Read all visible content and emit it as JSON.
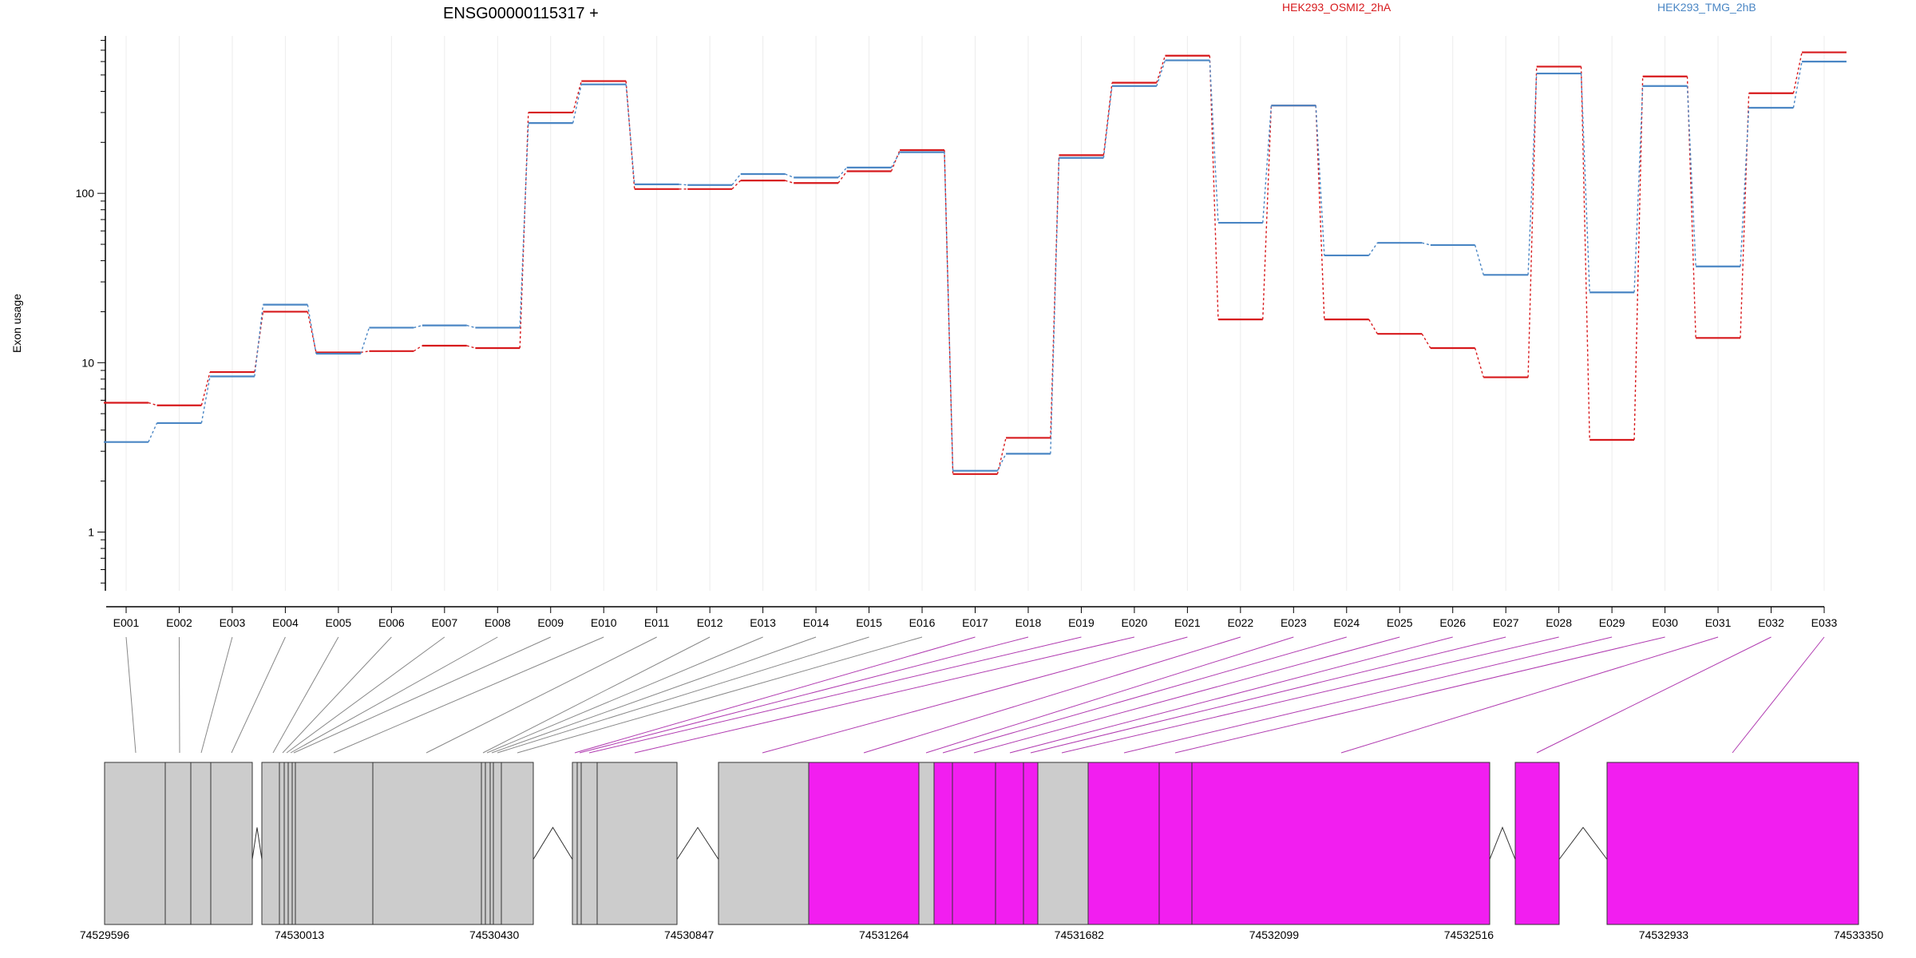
{
  "chart_data": {
    "type": "line",
    "title": "ENSG00000115317 +",
    "ylabel": "Exon usage",
    "xlabel": "",
    "yscale": "log",
    "ylim": [
      0.45,
      850
    ],
    "y_tick_labels": [
      "1",
      "10",
      "100"
    ],
    "y_tick_values": [
      1,
      10,
      100
    ],
    "categories": [
      "E001",
      "E002",
      "E003",
      "E004",
      "E005",
      "E006",
      "E007",
      "E008",
      "E009",
      "E010",
      "E011",
      "E012",
      "E013",
      "E014",
      "E015",
      "E016",
      "E017",
      "E018",
      "E019",
      "E020",
      "E021",
      "E022",
      "E023",
      "E024",
      "E025",
      "E026",
      "E027",
      "E028",
      "E029",
      "E030",
      "E031",
      "E032",
      "E033"
    ],
    "series": [
      {
        "name": "HEK293_OSMI2_2hA",
        "color": "#d7191c",
        "values": [
          5.8,
          5.6,
          8.8,
          20,
          11.5,
          11.7,
          12.6,
          12.2,
          300,
          460,
          106,
          106,
          119,
          115,
          135,
          180,
          2.2,
          3.6,
          168,
          450,
          650,
          18,
          330,
          18,
          14.8,
          12.2,
          8.2,
          560,
          3.5,
          490,
          14,
          390,
          680
        ]
      },
      {
        "name": "HEK293_TMG_2hB",
        "color": "#4a86c4",
        "values": [
          3.4,
          4.4,
          8.3,
          22,
          11.3,
          16.1,
          16.6,
          16.1,
          260,
          440,
          113,
          112,
          130,
          124,
          142,
          175,
          2.3,
          2.9,
          162,
          430,
          610,
          67,
          330,
          43,
          51,
          49.5,
          33,
          510,
          26,
          430,
          37,
          320,
          600
        ]
      }
    ],
    "grid": "vertical",
    "legend": "top"
  },
  "gene_model": {
    "coordinate_labels": [
      "74529596",
      "74530013",
      "74530430",
      "74530847",
      "74531264",
      "74531682",
      "74532099",
      "74532516",
      "74532933",
      "74533350"
    ],
    "fill_colors": {
      "default": "#cccccc",
      "highlighted": "#f21ef0"
    },
    "highlighted_exons": [
      "E017",
      "E018",
      "E019",
      "E020",
      "E021",
      "E022",
      "E023",
      "E024",
      "E025",
      "E026",
      "E027",
      "E028",
      "E029",
      "E030",
      "E031",
      "E032",
      "E033"
    ]
  }
}
